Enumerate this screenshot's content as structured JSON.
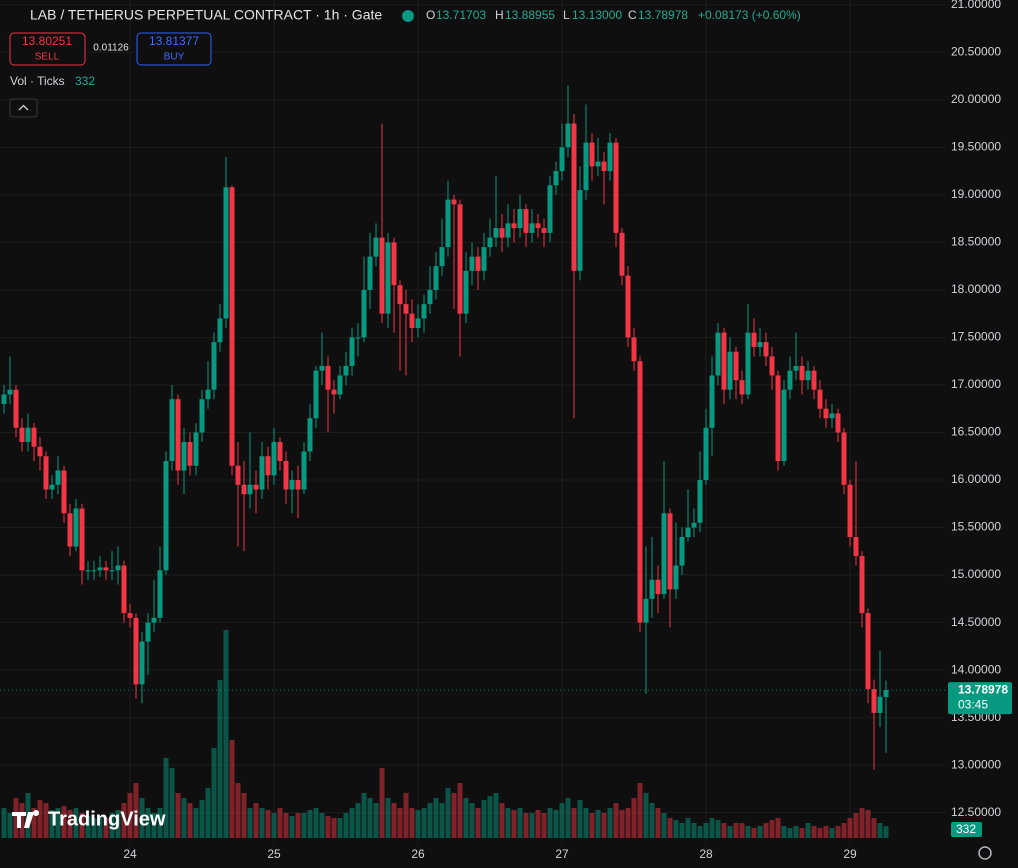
{
  "header": {
    "symbol": "LAB / TETHERUS PERPETUAL CONTRACT · 1h · Gate",
    "open_label": "O",
    "open": "13.71703",
    "high_label": "H",
    "high": "13.88955",
    "low_label": "L",
    "low": "13.13000",
    "close_label": "C",
    "close": "13.78978",
    "change": "+0.08173 (+0.60%)"
  },
  "trade": {
    "sell_price": "13.80251",
    "sell_label": "SELL",
    "spread": "0.01126",
    "buy_price": "13.81377",
    "buy_label": "BUY"
  },
  "volume_legend": "Vol · Ticks",
  "countdown": "03:45",
  "logo": "TradingView",
  "chart_data": {
    "type": "candlestick",
    "up_color": "#089981",
    "down_color": "#f23645",
    "grid": true,
    "ylim": [
      12.16,
      21.05
    ],
    "yticks": [
      {
        "value": 12.5,
        "label": "12.50000"
      },
      {
        "value": 13,
        "label": "13.00000"
      },
      {
        "value": 13.5,
        "label": "13.50000"
      },
      {
        "value": 14,
        "label": "14.00000"
      },
      {
        "value": 14.5,
        "label": "14.50000"
      },
      {
        "value": 15,
        "label": "15.00000"
      },
      {
        "value": 15.5,
        "label": "15.50000"
      },
      {
        "value": 16,
        "label": "16.00000"
      },
      {
        "value": 16.5,
        "label": "16.50000"
      },
      {
        "value": 17,
        "label": "17.00000"
      },
      {
        "value": 17.5,
        "label": "17.50000"
      },
      {
        "value": 18,
        "label": "18.00000"
      },
      {
        "value": 18.5,
        "label": "18.50000"
      },
      {
        "value": 19,
        "label": "19.00000"
      },
      {
        "value": 19.5,
        "label": "19.50000"
      },
      {
        "value": 20,
        "label": "20.00000"
      },
      {
        "value": 20.5,
        "label": "20.50000"
      },
      {
        "value": 21,
        "label": "21.00000"
      }
    ],
    "xticks": [
      {
        "value": 21,
        "label": "24"
      },
      {
        "value": 45,
        "label": "25"
      },
      {
        "value": 69,
        "label": "26"
      },
      {
        "value": 93,
        "label": "27"
      },
      {
        "value": 117,
        "label": "28"
      },
      {
        "value": 141,
        "label": "29"
      }
    ],
    "open": [
      16.8,
      16.9,
      16.95,
      16.55,
      16.4,
      16.55,
      16.35,
      16.25,
      15.9,
      15.95,
      16.1,
      15.65,
      15.3,
      15.7,
      15.05,
      15.05,
      15.05,
      15.08,
      15.05,
      15.05,
      15.1,
      14.6,
      14.55,
      13.85,
      14.3,
      14.5,
      14.55,
      15.05,
      16.2,
      16.85,
      16.1,
      16.4,
      16.15,
      16.5,
      16.85,
      16.95,
      17.45,
      17.7,
      19.08,
      16.15,
      15.95,
      15.85,
      15.95,
      15.9,
      16.25,
      16.05,
      16.4,
      16.2,
      15.9,
      16.0,
      15.9,
      16.3,
      16.65,
      17.15,
      17.2,
      16.95,
      16.9,
      17.1,
      17.2,
      17.5,
      17.5,
      18.0,
      18.35,
      18.55,
      17.75,
      18.5,
      18.05,
      17.85,
      17.75,
      17.6,
      17.7,
      17.85,
      18.0,
      18.25,
      18.45,
      18.95,
      18.9,
      17.75,
      18.2,
      18.35,
      18.2,
      18.45,
      18.55,
      18.65,
      18.55,
      18.7,
      18.65,
      18.85,
      18.6,
      18.7,
      18.65,
      18.6,
      19.1,
      19.25,
      19.5,
      19.75,
      18.2,
      19.05,
      19.55,
      19.3,
      19.35,
      19.25,
      19.55,
      18.6,
      18.15,
      17.5,
      17.25,
      14.5,
      14.75,
      14.95,
      14.8,
      15.65,
      14.85,
      15.1,
      15.4,
      15.5,
      15.55,
      16.0,
      16.55,
      17.1,
      17.55,
      16.95,
      17.35,
      17.05,
      16.9,
      17.55,
      17.4,
      17.45,
      17.3,
      17.1,
      16.2,
      16.95,
      17.15,
      17.2,
      17.05,
      17.15,
      16.95,
      16.75,
      16.65,
      16.7,
      16.5,
      15.95,
      15.4,
      15.2,
      14.6,
      13.8,
      13.55,
      13.71703
    ],
    "high": [
      17.0,
      17.3,
      17.0,
      16.65,
      16.7,
      16.6,
      16.45,
      16.3,
      16.05,
      16.25,
      16.15,
      15.75,
      15.8,
      15.75,
      15.15,
      15.15,
      15.2,
      15.15,
      15.25,
      15.3,
      15.15,
      14.7,
      14.6,
      14.4,
      14.6,
      14.95,
      15.3,
      16.3,
      17.0,
      16.9,
      16.55,
      16.5,
      16.6,
      16.95,
      17.25,
      17.55,
      17.85,
      19.4,
      19.1,
      16.4,
      16.2,
      16.5,
      16.1,
      16.4,
      16.35,
      16.55,
      16.45,
      16.3,
      16.1,
      16.15,
      16.4,
      16.8,
      17.2,
      17.55,
      17.3,
      17.05,
      17.2,
      17.35,
      17.6,
      17.65,
      18.35,
      18.6,
      18.7,
      19.75,
      18.6,
      18.55,
      18.1,
      18.0,
      17.9,
      17.85,
      17.95,
      18.25,
      18.4,
      18.75,
      19.15,
      19.0,
      18.95,
      18.4,
      18.5,
      18.45,
      18.6,
      18.75,
      19.2,
      18.8,
      18.9,
      18.85,
      19.0,
      18.9,
      18.85,
      18.8,
      18.75,
      19.2,
      19.35,
      19.75,
      20.15,
      19.85,
      19.3,
      19.95,
      19.65,
      19.6,
      19.45,
      19.65,
      19.6,
      18.65,
      18.25,
      17.6,
      17.3,
      15.3,
      15.4,
      15.1,
      16.2,
      15.7,
      15.55,
      15.5,
      15.9,
      15.7,
      16.3,
      16.75,
      17.3,
      17.65,
      17.6,
      17.5,
      17.4,
      17.15,
      17.85,
      17.7,
      17.6,
      17.55,
      17.4,
      17.15,
      17.05,
      17.3,
      17.55,
      17.3,
      17.25,
      17.2,
      17.05,
      16.85,
      16.8,
      16.75,
      16.55,
      16.0,
      16.2,
      15.25,
      14.65,
      13.9,
      14.2,
      13.88955
    ],
    "low": [
      16.7,
      16.8,
      16.45,
      16.3,
      16.3,
      16.2,
      16.1,
      15.8,
      15.8,
      15.85,
      15.55,
      15.2,
      15.25,
      14.9,
      14.95,
      14.95,
      14.98,
      14.95,
      14.95,
      14.9,
      14.5,
      14.45,
      13.7,
      13.65,
      13.95,
      14.4,
      14.5,
      15.0,
      16.1,
      15.95,
      15.85,
      16.05,
      16.05,
      16.4,
      16.75,
      16.85,
      17.35,
      17.6,
      16.05,
      15.3,
      15.25,
      15.7,
      15.65,
      15.8,
      15.9,
      15.95,
      16.1,
      15.75,
      15.65,
      15.6,
      15.85,
      16.2,
      16.55,
      17.0,
      16.5,
      16.7,
      16.85,
      17.0,
      17.1,
      17.3,
      17.45,
      17.8,
      18.25,
      17.65,
      17.6,
      17.55,
      17.15,
      17.1,
      17.45,
      17.5,
      17.55,
      17.75,
      17.9,
      18.15,
      18.35,
      17.8,
      17.3,
      17.65,
      18.05,
      18.0,
      18.1,
      18.35,
      18.45,
      18.4,
      18.45,
      18.5,
      18.55,
      18.45,
      18.5,
      18.55,
      18.45,
      18.5,
      19.0,
      19.15,
      19.4,
      16.65,
      18.1,
      18.95,
      19.15,
      19.2,
      18.9,
      19.15,
      18.45,
      18.05,
      17.4,
      17.15,
      14.4,
      13.75,
      14.55,
      14.6,
      14.75,
      14.45,
      14.75,
      15.0,
      15.35,
      15.4,
      15.45,
      15.95,
      16.25,
      17.0,
      16.8,
      16.85,
      16.85,
      16.8,
      16.85,
      17.3,
      17.3,
      17.2,
      16.95,
      16.1,
      16.15,
      16.85,
      17.05,
      16.9,
      16.95,
      16.85,
      16.65,
      16.55,
      16.55,
      16.4,
      15.85,
      15.3,
      15.1,
      14.45,
      13.65,
      12.95,
      13.4,
      13.13
    ],
    "close": [
      16.9,
      16.95,
      16.55,
      16.4,
      16.55,
      16.35,
      16.25,
      15.9,
      15.95,
      16.1,
      15.65,
      15.3,
      15.7,
      15.05,
      15.05,
      15.05,
      15.08,
      15.05,
      15.05,
      15.1,
      14.6,
      14.55,
      13.85,
      14.3,
      14.5,
      14.55,
      15.05,
      16.2,
      16.85,
      16.1,
      16.4,
      16.15,
      16.5,
      16.85,
      16.95,
      17.45,
      17.7,
      19.08,
      16.15,
      15.95,
      15.85,
      15.95,
      15.9,
      16.25,
      16.05,
      16.4,
      16.2,
      15.9,
      16.0,
      15.9,
      16.3,
      16.65,
      17.15,
      17.2,
      16.95,
      16.9,
      17.1,
      17.2,
      17.5,
      17.5,
      18.0,
      18.35,
      18.55,
      17.75,
      18.5,
      18.05,
      17.85,
      17.75,
      17.6,
      17.7,
      17.85,
      18.0,
      18.25,
      18.45,
      18.95,
      18.9,
      17.75,
      18.2,
      18.35,
      18.2,
      18.45,
      18.55,
      18.65,
      18.55,
      18.7,
      18.65,
      18.85,
      18.6,
      18.7,
      18.65,
      18.6,
      19.1,
      19.25,
      19.5,
      19.75,
      18.2,
      19.05,
      19.55,
      19.3,
      19.35,
      19.25,
      19.55,
      18.6,
      18.15,
      17.5,
      17.25,
      14.5,
      14.75,
      14.95,
      14.8,
      15.65,
      14.85,
      15.1,
      15.4,
      15.5,
      15.55,
      16.0,
      16.55,
      17.1,
      17.55,
      16.95,
      17.35,
      17.05,
      16.9,
      17.55,
      17.4,
      17.45,
      17.3,
      17.1,
      16.2,
      16.95,
      17.15,
      17.2,
      17.05,
      17.15,
      16.95,
      16.75,
      16.65,
      16.7,
      16.5,
      15.95,
      15.4,
      15.2,
      14.6,
      13.8,
      13.55,
      13.72,
      13.78978
    ],
    "volume": [
      840,
      700,
      1120,
      980,
      1260,
      840,
      1064,
      980,
      784,
      840,
      896,
      784,
      840,
      700,
      616,
      560,
      616,
      560,
      700,
      784,
      980,
      1260,
      1540,
      1120,
      840,
      700,
      840,
      2240,
      1960,
      1260,
      1120,
      980,
      840,
      1064,
      1400,
      2520,
      4424,
      5824,
      2744,
      1540,
      1260,
      840,
      980,
      840,
      784,
      700,
      840,
      700,
      616,
      700,
      700,
      784,
      840,
      700,
      616,
      560,
      560,
      700,
      840,
      980,
      1260,
      1120,
      980,
      1960,
      1120,
      980,
      840,
      1260,
      840,
      784,
      840,
      980,
      1120,
      980,
      1400,
      1260,
      1540,
      1120,
      980,
      840,
      1064,
      1176,
      1260,
      980,
      840,
      784,
      840,
      700,
      700,
      784,
      700,
      840,
      784,
      980,
      1120,
      840,
      1064,
      840,
      700,
      784,
      700,
      840,
      980,
      784,
      840,
      1120,
      1540,
      1260,
      980,
      840,
      700,
      560,
      504,
      420,
      560,
      420,
      336,
      420,
      560,
      504,
      420,
      336,
      420,
      420,
      336,
      280,
      336,
      420,
      504,
      560,
      336,
      280,
      336,
      280,
      420,
      336,
      280,
      336,
      280,
      336,
      420,
      560,
      700,
      840,
      784,
      560,
      420,
      332
    ]
  }
}
